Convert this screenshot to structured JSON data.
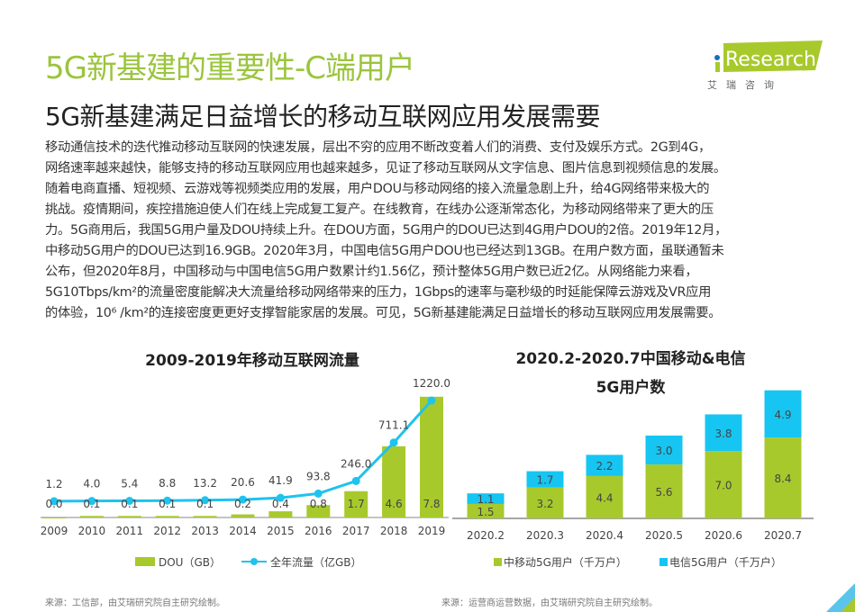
{
  "header": {
    "title": "5G新基建的重要性-C端用户",
    "subtitle": "5G新基建满足日益增长的移动互联网应用发展需要"
  },
  "logo": {
    "text": "iResearch",
    "cn": "艾 瑞 咨 询",
    "colors": {
      "green": "#a8c92c",
      "dot": "#1a6fb5"
    }
  },
  "body": {
    "lines": [
      "移动通信技术的迭代推动移动互联网的快速发展，层出不穷的应用不断改变着人们的消费、支付及娱乐方式。2G到4G，",
      "网络速率越来越快，能够支持的移动互联网应用也越来越多，见证了移动互联网从文字信息、图片信息到视频信息的发展。",
      "随着电商直播、短视频、云游戏等视频类应用的发展，用户DOU与移动网络的接入流量急剧上升，给4G网络带来极大的",
      "挑战。疫情期间，疾控措施迫使人们在线上完成复工复产。在线教育，在线办公逐渐常态化，为移动网络带来了更大的压",
      "力。5G商用后，我国5G用户量及DOU持续上升。在DOU方面，5G用户的DOU已达到4G用户DOU的2倍。2019年12月，",
      "中移动5G用户的DOU已达到16.9GB。2020年3月，中国电信5G用户DOU也已经达到13GB。在用户数方面，虽联通暂未",
      "公布，但2020年8月，中国移动与中国电信5G用户数累计约1.56亿，预计整体5G用户数已近2亿。从网络能力来看，",
      "5G10Tbps/km²的流量密度能解决大流量给移动网络带来的压力，1Gbps的速率与毫秒级的时延能保障云游戏及VR应用",
      "的体验，10⁶ /km²的连接密度更更好支撑智能家居的发展。可见，5G新基建能满足日益增长的移动互联网应用发展需要。"
    ]
  },
  "chart_data": [
    {
      "type": "bar+line",
      "title": "2009-2019年移动互联网流量",
      "categories": [
        "2009",
        "2010",
        "2011",
        "2012",
        "2013",
        "2014",
        "2015",
        "2016",
        "2017",
        "2018",
        "2019"
      ],
      "series": [
        {
          "name": "DOU（GB）",
          "type": "bar",
          "color": "#a8c92c",
          "values": [
            0.0,
            0.1,
            0.1,
            0.1,
            0.1,
            0.2,
            0.4,
            0.8,
            1.7,
            4.6,
            7.8
          ]
        },
        {
          "name": "全年流量（亿GB）",
          "type": "line",
          "color": "#1ec3ee",
          "values": [
            1.2,
            4.0,
            5.4,
            8.8,
            13.2,
            20.6,
            41.9,
            93.8,
            246.0,
            711.1,
            1220.0
          ]
        }
      ],
      "legend": "bottom",
      "grid": false
    },
    {
      "type": "stacked-bar",
      "title": "2020.2-2020.7中国移动&电信",
      "title2": "5G用户数",
      "categories": [
        "2020.2",
        "2020.3",
        "2020.4",
        "2020.5",
        "2020.6",
        "2020.7"
      ],
      "series": [
        {
          "name": "中移动5G用户（千万户）",
          "color": "#a8c92c",
          "values": [
            1.5,
            3.2,
            4.4,
            5.6,
            7.0,
            8.4
          ]
        },
        {
          "name": "电信5G用户（千万户）",
          "color": "#16c5f1",
          "values": [
            1.1,
            1.7,
            2.2,
            3.0,
            3.8,
            4.9
          ]
        }
      ],
      "legend": "bottom",
      "grid": false
    }
  ],
  "footer": {
    "left": "来源：工信部，由艾瑞研究院自主研究绘制。",
    "right": "来源：运营商运营数据，由艾瑞研究院自主研究绘制。"
  }
}
